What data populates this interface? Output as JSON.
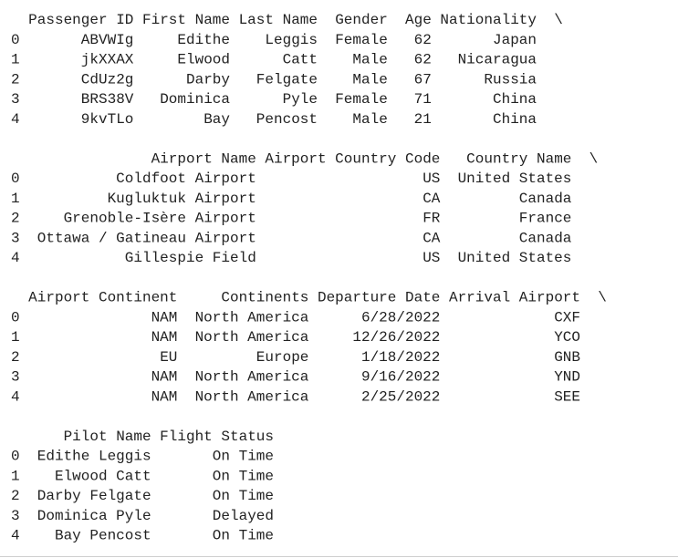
{
  "blocks": [
    {
      "columns": [
        "Passenger ID",
        "First Name",
        "Last Name",
        "Gender",
        "Age",
        "Nationality"
      ],
      "continued": "\\",
      "rows": [
        {
          "index": 0,
          "cells": [
            "ABVWIg",
            "Edithe",
            "Leggis",
            "Female",
            62,
            "Japan"
          ]
        },
        {
          "index": 1,
          "cells": [
            "jkXXAX",
            "Elwood",
            "Catt",
            "Male",
            62,
            "Nicaragua"
          ]
        },
        {
          "index": 2,
          "cells": [
            "CdUz2g",
            "Darby",
            "Felgate",
            "Male",
            67,
            "Russia"
          ]
        },
        {
          "index": 3,
          "cells": [
            "BRS38V",
            "Dominica",
            "Pyle",
            "Female",
            71,
            "China"
          ]
        },
        {
          "index": 4,
          "cells": [
            "9kvTLo",
            "Bay",
            "Pencost",
            "Male",
            21,
            "China"
          ]
        }
      ]
    },
    {
      "columns": [
        "Airport Name",
        "Airport Country Code",
        "Country Name"
      ],
      "continued": "\\",
      "rows": [
        {
          "index": 0,
          "cells": [
            "Coldfoot Airport",
            "US",
            "United States"
          ]
        },
        {
          "index": 1,
          "cells": [
            "Kugluktuk Airport",
            "CA",
            "Canada"
          ]
        },
        {
          "index": 2,
          "cells": [
            "Grenoble-Isère Airport",
            "FR",
            "France"
          ]
        },
        {
          "index": 3,
          "cells": [
            "Ottawa / Gatineau Airport",
            "CA",
            "Canada"
          ]
        },
        {
          "index": 4,
          "cells": [
            "Gillespie Field",
            "US",
            "United States"
          ]
        }
      ]
    },
    {
      "columns": [
        "Airport Continent",
        "Continents",
        "Departure Date",
        "Arrival Airport"
      ],
      "continued": "\\",
      "rows": [
        {
          "index": 0,
          "cells": [
            "NAM",
            "North America",
            "6/28/2022",
            "CXF"
          ]
        },
        {
          "index": 1,
          "cells": [
            "NAM",
            "North America",
            "12/26/2022",
            "YCO"
          ]
        },
        {
          "index": 2,
          "cells": [
            "EU",
            "Europe",
            "1/18/2022",
            "GNB"
          ]
        },
        {
          "index": 3,
          "cells": [
            "NAM",
            "North America",
            "9/16/2022",
            "YND"
          ]
        },
        {
          "index": 4,
          "cells": [
            "NAM",
            "North America",
            "2/25/2022",
            "SEE"
          ]
        }
      ]
    },
    {
      "columns": [
        "Pilot Name",
        "Flight Status"
      ],
      "rows": [
        {
          "index": 0,
          "cells": [
            "Edithe Leggis",
            "On Time"
          ]
        },
        {
          "index": 1,
          "cells": [
            "Elwood Catt",
            "On Time"
          ]
        },
        {
          "index": 2,
          "cells": [
            "Darby Felgate",
            "On Time"
          ]
        },
        {
          "index": 3,
          "cells": [
            "Dominica Pyle",
            "Delayed"
          ]
        },
        {
          "index": 4,
          "cells": [
            "Bay Pencost",
            "On Time"
          ]
        }
      ]
    }
  ]
}
